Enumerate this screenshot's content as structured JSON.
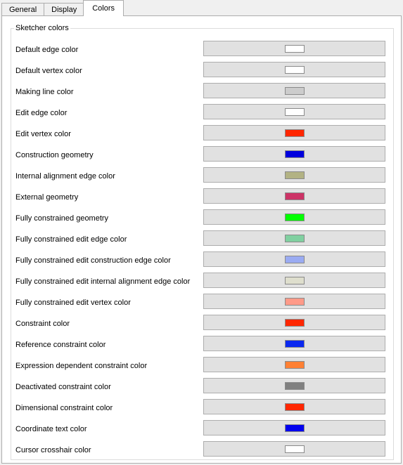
{
  "tabs": [
    {
      "label": "General",
      "active": false
    },
    {
      "label": "Display",
      "active": false
    },
    {
      "label": "Colors",
      "active": true
    }
  ],
  "group": {
    "title": "Sketcher colors",
    "items": [
      {
        "label": "Default edge color",
        "color": "#ffffff"
      },
      {
        "label": "Default vertex color",
        "color": "#ffffff"
      },
      {
        "label": "Making line color",
        "color": "#cccccc"
      },
      {
        "label": "Edit edge color",
        "color": "#ffffff"
      },
      {
        "label": "Edit vertex color",
        "color": "#ff2600"
      },
      {
        "label": "Construction geometry",
        "color": "#0000dd"
      },
      {
        "label": "Internal alignment edge color",
        "color": "#b2b283"
      },
      {
        "label": "External geometry",
        "color": "#cc3366"
      },
      {
        "label": "Fully constrained geometry",
        "color": "#00ff00"
      },
      {
        "label": "Fully constrained edit edge color",
        "color": "#80d0a0"
      },
      {
        "label": "Fully constrained edit construction edge color",
        "color": "#9aabf2"
      },
      {
        "label": "Fully constrained edit internal alignment edge color",
        "color": "#dedecd"
      },
      {
        "label": "Fully constrained edit vertex color",
        "color": "#ff9a88"
      },
      {
        "label": "Constraint color",
        "color": "#ff2600"
      },
      {
        "label": "Reference constraint color",
        "color": "#0a28f0"
      },
      {
        "label": "Expression dependent constraint color",
        "color": "#ff8033"
      },
      {
        "label": "Deactivated constraint color",
        "color": "#808080"
      },
      {
        "label": "Dimensional constraint color",
        "color": "#ff2600"
      },
      {
        "label": "Coordinate text color",
        "color": "#0000ee"
      },
      {
        "label": "Cursor crosshair color",
        "color": "#ffffff"
      }
    ]
  }
}
